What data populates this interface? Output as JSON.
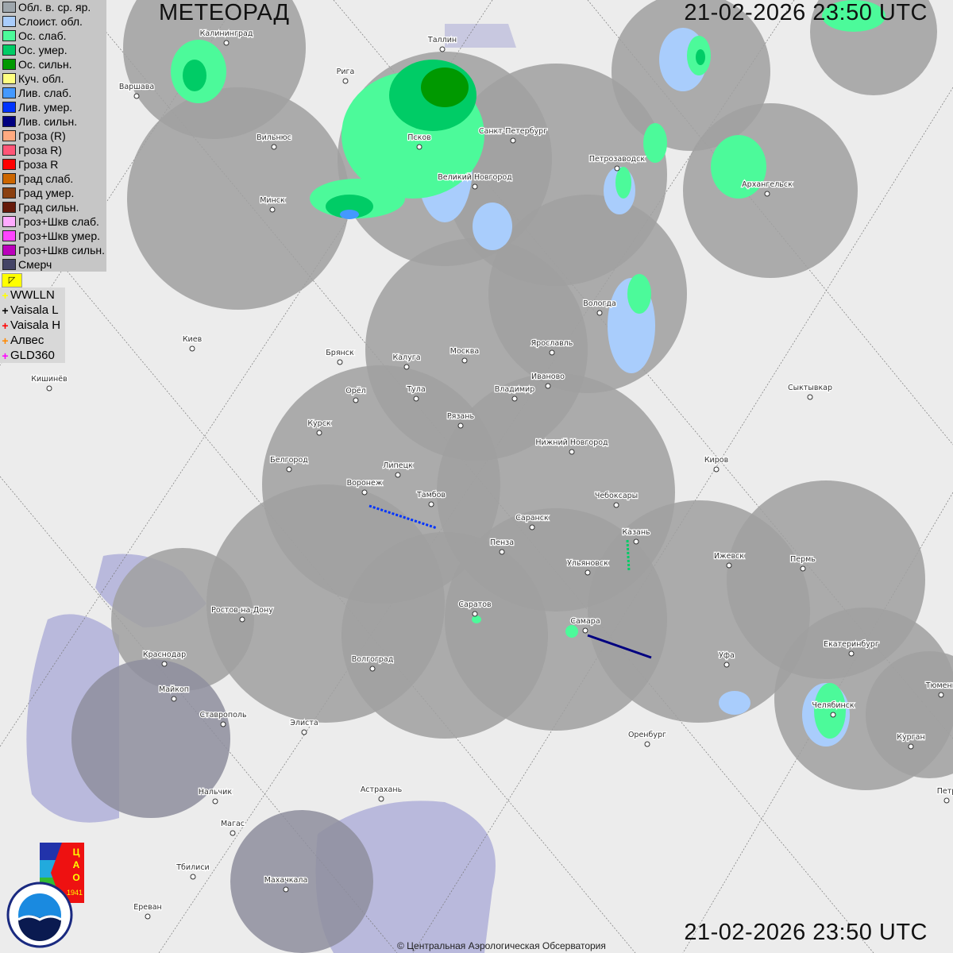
{
  "header": {
    "title": "МЕТЕОРАД",
    "timestamp": "21-02-2026  23:50 UTC"
  },
  "legend": [
    {
      "label": "Обл. в. ср. яр.",
      "color": "#9ea6ac"
    },
    {
      "label": "Слоист. обл.",
      "color": "#a9cdfc"
    },
    {
      "label": "Ос. слаб.",
      "color": "#4cfa9a"
    },
    {
      "label": "Ос. умер.",
      "color": "#00cc66"
    },
    {
      "label": "Ос. сильн.",
      "color": "#009900"
    },
    {
      "label": "Куч. обл.",
      "color": "#ffff80"
    },
    {
      "label": "Лив. слаб.",
      "color": "#4499ff"
    },
    {
      "label": "Лив. умер.",
      "color": "#0033ff"
    },
    {
      "label": "Лив. сильн.",
      "color": "#000080"
    },
    {
      "label": "Гроза (R)",
      "color": "#ffaa80"
    },
    {
      "label": "Гроза R)",
      "color": "#ff5577"
    },
    {
      "label": "Гроза R",
      "color": "#ff0000"
    },
    {
      "label": "Град слаб.",
      "color": "#cc6600"
    },
    {
      "label": "Град умер.",
      "color": "#8b4010"
    },
    {
      "label": "Град сильн.",
      "color": "#661a0a"
    },
    {
      "label": "Гроз+Шкв слаб.",
      "color": "#ffaaff"
    },
    {
      "label": "Гроз+Шкв умер.",
      "color": "#ff44ff"
    },
    {
      "label": "Гроз+Шкв сильн.",
      "color": "#bb00bb"
    },
    {
      "label": "Смерч",
      "color": "#444466"
    }
  ],
  "lightning_toggle_icon": "flag-icon",
  "lightning": [
    {
      "label": "WWLLN",
      "color": "#ffff00"
    },
    {
      "label": "Vaisala L",
      "color": "#000000"
    },
    {
      "label": "Vaisala H",
      "color": "#ff0000"
    },
    {
      "label": "Алвес",
      "color": "#ff8800"
    },
    {
      "label": "GLD360",
      "color": "#ff00ff"
    }
  ],
  "cities": [
    "Калининград",
    "Таллин",
    "Рига",
    "Варшава",
    "Вильнюс",
    "Псков",
    "Санкт-Петербург",
    "Великий Новгород",
    "Минск",
    "Петрозаводск",
    "Архангельск",
    "Вологда",
    "Киев",
    "Брянск",
    "Калуга",
    "Москва",
    "Ярославль",
    "Иваново",
    "Кишинёв",
    "Орёл",
    "Тула",
    "Владимир",
    "Сыктывкар",
    "Рязань",
    "Курск",
    "Нижний Новгород",
    "Белгород",
    "Липецк",
    "Киров",
    "Воронеж",
    "Тамбов",
    "Чебоксары",
    "Саранск",
    "Казань",
    "Пенза",
    "Ижевск",
    "Пермь",
    "Ульяновск",
    "Ростов-на-Дону",
    "Саратов",
    "Самара",
    "Краснодар",
    "Екатеринбург",
    "Уфа",
    "Волгоград",
    "Майкоп",
    "Тюмень",
    "Челябинск",
    "Ставрополь",
    "Элиста",
    "Оренбург",
    "Курган",
    "Астрахань",
    "Нальчик",
    "Петр",
    "Магас",
    "Тбилиси",
    "Махачкала",
    "Ереван"
  ],
  "logos": {
    "cao": "ЦАО 1941",
    "roshydromet": "РОСГИДРОМЕТ ROSHYDROMET"
  },
  "copyright": "© Центральная Аэрологическая Обсерватория"
}
